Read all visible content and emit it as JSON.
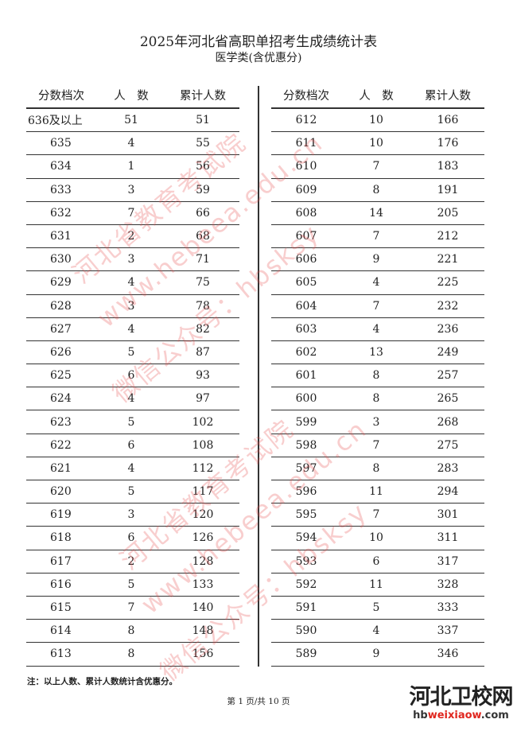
{
  "title": "2025年河北省高职单招考生成绩统计表",
  "subtitle": "医学类(含优惠分)",
  "headers": [
    "分数档次",
    "人　数",
    "累计人数"
  ],
  "left_rows": [
    [
      "636及以上",
      "51",
      "51"
    ],
    [
      "635",
      "4",
      "55"
    ],
    [
      "634",
      "1",
      "56"
    ],
    [
      "633",
      "3",
      "59"
    ],
    [
      "632",
      "7",
      "66"
    ],
    [
      "631",
      "2",
      "68"
    ],
    [
      "630",
      "3",
      "71"
    ],
    [
      "629",
      "4",
      "75"
    ],
    [
      "628",
      "3",
      "78"
    ],
    [
      "627",
      "4",
      "82"
    ],
    [
      "626",
      "5",
      "87"
    ],
    [
      "625",
      "6",
      "93"
    ],
    [
      "624",
      "4",
      "97"
    ],
    [
      "623",
      "5",
      "102"
    ],
    [
      "622",
      "6",
      "108"
    ],
    [
      "621",
      "4",
      "112"
    ],
    [
      "620",
      "5",
      "117"
    ],
    [
      "619",
      "3",
      "120"
    ],
    [
      "618",
      "6",
      "126"
    ],
    [
      "617",
      "2",
      "128"
    ],
    [
      "616",
      "5",
      "133"
    ],
    [
      "615",
      "7",
      "140"
    ],
    [
      "614",
      "8",
      "148"
    ],
    [
      "613",
      "8",
      "156"
    ]
  ],
  "right_rows": [
    [
      "612",
      "10",
      "166"
    ],
    [
      "611",
      "10",
      "176"
    ],
    [
      "610",
      "7",
      "183"
    ],
    [
      "609",
      "8",
      "191"
    ],
    [
      "608",
      "14",
      "205"
    ],
    [
      "607",
      "7",
      "212"
    ],
    [
      "606",
      "9",
      "221"
    ],
    [
      "605",
      "4",
      "225"
    ],
    [
      "604",
      "7",
      "232"
    ],
    [
      "603",
      "4",
      "236"
    ],
    [
      "602",
      "13",
      "249"
    ],
    [
      "601",
      "8",
      "257"
    ],
    [
      "600",
      "8",
      "265"
    ],
    [
      "599",
      "3",
      "268"
    ],
    [
      "598",
      "7",
      "275"
    ],
    [
      "597",
      "8",
      "283"
    ],
    [
      "596",
      "11",
      "294"
    ],
    [
      "595",
      "7",
      "301"
    ],
    [
      "594",
      "10",
      "311"
    ],
    [
      "593",
      "6",
      "317"
    ],
    [
      "592",
      "11",
      "328"
    ],
    [
      "591",
      "5",
      "333"
    ],
    [
      "590",
      "4",
      "337"
    ],
    [
      "589",
      "9",
      "346"
    ]
  ],
  "note": "注：以上人数、累计人数统计含优惠分。",
  "page_number": "第 1 页/共 10 页",
  "watermark": [
    "河北省教育考试院",
    "www.hebeea.edu.cn",
    "微信公众号：hbsksy"
  ],
  "logo": {
    "text": "河北卫校网",
    "url_prefix": "hb",
    "url_highlight": "weixiaow",
    "url_suffix": ".com"
  },
  "watermark_color": "#e65050"
}
